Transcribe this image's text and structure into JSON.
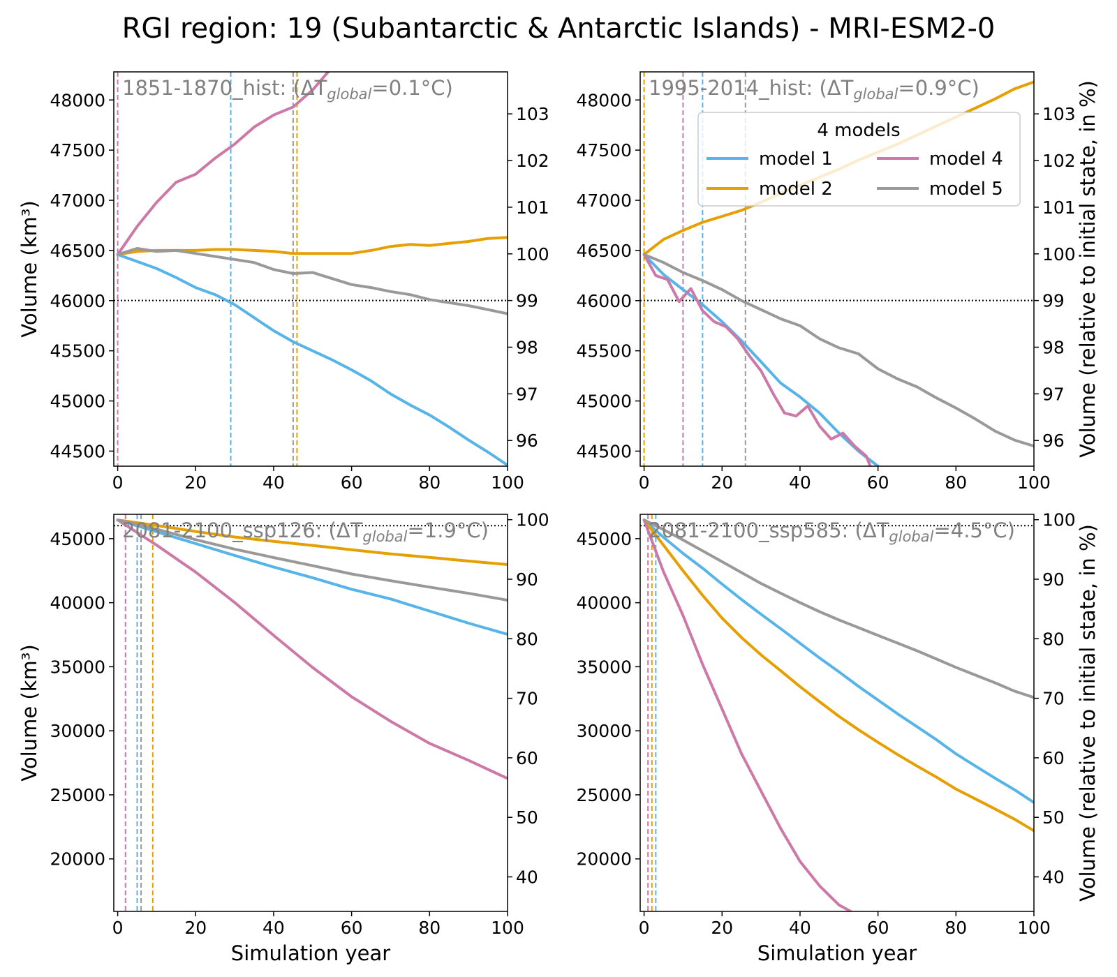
{
  "title": "RGI region: 19 (Subantarctic & Antarctic Islands) - MRI-ESM2-0",
  "colors": {
    "model 1": "#56b4e9",
    "model 2": "#e69f00",
    "model 4": "#cc79a7",
    "model 5": "#999999",
    "label": "#808080"
  },
  "legend": {
    "title": "4 models",
    "entries": [
      "model 1",
      "model 2",
      "model 4",
      "model 5"
    ]
  },
  "chart_data": [
    {
      "type": "line",
      "panel_label": {
        "prefix": "1851-1870_hist: (ΔT",
        "sub": "global",
        "suffix": "=0.1°C)"
      },
      "xlabel": "",
      "ylabel": "Volume (km³)",
      "ylabel_right": "",
      "xlim": [
        -1,
        100
      ],
      "ylim": [
        44350,
        48280
      ],
      "right_ylim": [
        95.45,
        103.9
      ],
      "xticks": [
        0,
        20,
        40,
        60,
        80,
        100
      ],
      "yticks": [
        44500,
        45000,
        45500,
        46000,
        46500,
        47000,
        47500,
        48000
      ],
      "right_yticks": [
        96,
        97,
        98,
        99,
        100,
        101,
        102,
        103
      ],
      "hline_pct": 99,
      "vlines": [
        {
          "series": "model 4",
          "x": 0
        },
        {
          "series": "model 1",
          "x": 29
        },
        {
          "series": "model 5",
          "x": 45
        },
        {
          "series": "model 2",
          "x": 46
        }
      ],
      "series": [
        {
          "name": "model 1",
          "x": [
            0,
            5,
            10,
            15,
            20,
            25,
            30,
            35,
            40,
            45,
            50,
            55,
            60,
            65,
            70,
            75,
            80,
            85,
            90,
            95,
            100
          ],
          "values": [
            46460,
            46390,
            46320,
            46230,
            46130,
            46060,
            45960,
            45830,
            45700,
            45590,
            45500,
            45410,
            45310,
            45200,
            45070,
            44960,
            44860,
            44740,
            44610,
            44490,
            44360
          ]
        },
        {
          "name": "model 2",
          "x": [
            0,
            5,
            10,
            15,
            20,
            25,
            30,
            35,
            40,
            45,
            50,
            55,
            60,
            65,
            70,
            75,
            80,
            85,
            90,
            95,
            100
          ],
          "values": [
            46460,
            46490,
            46500,
            46500,
            46500,
            46510,
            46510,
            46500,
            46490,
            46470,
            46470,
            46470,
            46470,
            46500,
            46540,
            46560,
            46550,
            46570,
            46590,
            46620,
            46630
          ]
        },
        {
          "name": "model 4",
          "x": [
            0,
            5,
            10,
            15,
            20,
            25,
            30,
            35,
            40,
            45,
            50,
            54
          ],
          "values": [
            46460,
            46740,
            46980,
            47180,
            47260,
            47420,
            47560,
            47730,
            47850,
            47930,
            48100,
            48280
          ]
        },
        {
          "name": "model 5",
          "x": [
            0,
            5,
            10,
            15,
            20,
            25,
            30,
            35,
            40,
            45,
            50,
            55,
            60,
            65,
            70,
            75,
            80,
            85,
            90,
            95,
            100
          ],
          "values": [
            46460,
            46520,
            46490,
            46500,
            46470,
            46440,
            46410,
            46380,
            46310,
            46270,
            46280,
            46220,
            46160,
            46130,
            46090,
            46060,
            46010,
            45980,
            45950,
            45910,
            45870
          ]
        }
      ]
    },
    {
      "type": "line",
      "panel_label": {
        "prefix": "1995-2014_hist: (ΔT",
        "sub": "global",
        "suffix": "=0.9°C)"
      },
      "xlabel": "",
      "ylabel": "",
      "ylabel_right": "Volume (relative to initial state, in %)",
      "xlim": [
        -1,
        100
      ],
      "ylim": [
        44350,
        48280
      ],
      "right_ylim": [
        95.45,
        103.9
      ],
      "xticks": [
        0,
        20,
        40,
        60,
        80,
        100
      ],
      "yticks": [
        44500,
        45000,
        45500,
        46000,
        46500,
        47000,
        47500,
        48000
      ],
      "right_yticks": [
        96,
        97,
        98,
        99,
        100,
        101,
        102,
        103
      ],
      "hline_pct": 99,
      "vlines": [
        {
          "series": "model 2",
          "x": 0
        },
        {
          "series": "model 4",
          "x": 10
        },
        {
          "series": "model 1",
          "x": 15
        },
        {
          "series": "model 5",
          "x": 26
        }
      ],
      "series": [
        {
          "name": "model 1",
          "x": [
            0,
            5,
            10,
            15,
            20,
            25,
            30,
            35,
            40,
            45,
            50,
            55,
            60
          ],
          "values": [
            46460,
            46260,
            46110,
            45960,
            45790,
            45600,
            45390,
            45180,
            45040,
            44880,
            44680,
            44500,
            44350
          ]
        },
        {
          "name": "model 2",
          "x": [
            0,
            5,
            10,
            15,
            20,
            25,
            30,
            35,
            40,
            45,
            50,
            55,
            60,
            65,
            70,
            75,
            80,
            85,
            90,
            95,
            100
          ],
          "values": [
            46460,
            46610,
            46700,
            46780,
            46840,
            46900,
            46980,
            47070,
            47150,
            47230,
            47310,
            47400,
            47480,
            47560,
            47650,
            47740,
            47830,
            47920,
            48010,
            48110,
            48180
          ]
        },
        {
          "name": "model 4",
          "x": [
            0,
            3,
            6,
            9,
            12,
            15,
            18,
            21,
            24,
            27,
            30,
            33,
            36,
            39,
            42,
            45,
            48,
            51,
            54,
            57,
            58
          ],
          "values": [
            46460,
            46250,
            46210,
            45990,
            46120,
            45900,
            45790,
            45740,
            45620,
            45450,
            45300,
            45080,
            44880,
            44850,
            44950,
            44750,
            44620,
            44680,
            44550,
            44450,
            44350
          ]
        },
        {
          "name": "model 5",
          "x": [
            0,
            5,
            10,
            15,
            20,
            25,
            30,
            35,
            40,
            45,
            50,
            55,
            60,
            65,
            70,
            75,
            80,
            85,
            90,
            95,
            100
          ],
          "values": [
            46460,
            46380,
            46280,
            46200,
            46110,
            46000,
            45910,
            45820,
            45750,
            45620,
            45530,
            45470,
            45320,
            45220,
            45140,
            45030,
            44930,
            44820,
            44700,
            44610,
            44550
          ]
        }
      ]
    },
    {
      "type": "line",
      "panel_label": {
        "prefix": "2081-2100_ssp126: (ΔT",
        "sub": "global",
        "suffix": "=1.9°C)"
      },
      "xlabel": "Simulation year",
      "ylabel": "Volume (km³)",
      "ylabel_right": "",
      "xlim": [
        -1,
        100
      ],
      "ylim": [
        15900,
        46900
      ],
      "right_ylim": [
        34.2,
        100.9
      ],
      "xticks": [
        0,
        20,
        40,
        60,
        80,
        100
      ],
      "yticks": [
        20000,
        25000,
        30000,
        35000,
        40000,
        45000
      ],
      "right_yticks": [
        40,
        50,
        60,
        70,
        80,
        90,
        100
      ],
      "hline_pct": 99,
      "vlines": [
        {
          "series": "model 4",
          "x": 2
        },
        {
          "series": "model 1",
          "x": 5
        },
        {
          "series": "model 5",
          "x": 6
        },
        {
          "series": "model 2",
          "x": 9
        }
      ],
      "series": [
        {
          "name": "model 1",
          "x": [
            0,
            10,
            20,
            30,
            40,
            50,
            60,
            70,
            80,
            90,
            100
          ],
          "values": [
            46460,
            45540,
            44610,
            43690,
            42780,
            41950,
            41050,
            40290,
            39350,
            38400,
            37530
          ]
        },
        {
          "name": "model 2",
          "x": [
            0,
            10,
            20,
            30,
            40,
            50,
            60,
            70,
            80,
            90,
            100
          ],
          "values": [
            46460,
            46030,
            45560,
            45130,
            44790,
            44470,
            44130,
            43810,
            43540,
            43250,
            42980
          ]
        },
        {
          "name": "model 4",
          "x": [
            0,
            10,
            20,
            30,
            40,
            50,
            60,
            70,
            80,
            90,
            100
          ],
          "values": [
            46460,
            44490,
            42390,
            40020,
            37450,
            34940,
            32660,
            30740,
            29020,
            27690,
            26280
          ]
        },
        {
          "name": "model 5",
          "x": [
            0,
            10,
            20,
            30,
            40,
            50,
            60,
            70,
            80,
            90,
            100
          ],
          "values": [
            46460,
            45740,
            44920,
            44180,
            43520,
            42890,
            42240,
            41720,
            41220,
            40730,
            40200
          ]
        }
      ]
    },
    {
      "type": "line",
      "panel_label": {
        "prefix": "2081-2100_ssp585: (ΔT",
        "sub": "global",
        "suffix": "=4.5°C)"
      },
      "xlabel": "Simulation year",
      "ylabel": "",
      "ylabel_right": "Volume (relative to initial state, in %)",
      "xlim": [
        -1,
        100
      ],
      "ylim": [
        15900,
        46900
      ],
      "right_ylim": [
        34.2,
        100.9
      ],
      "xticks": [
        0,
        20,
        40,
        60,
        80,
        100
      ],
      "yticks": [
        20000,
        25000,
        30000,
        35000,
        40000,
        45000
      ],
      "right_yticks": [
        40,
        50,
        60,
        70,
        80,
        90,
        100
      ],
      "hline_pct": 99,
      "vlines": [
        {
          "series": "model 4",
          "x": 1
        },
        {
          "series": "model 2",
          "x": 2
        },
        {
          "series": "model 1",
          "x": 3
        }
      ],
      "series": [
        {
          "name": "model 1",
          "x": [
            0,
            5,
            10,
            15,
            20,
            25,
            30,
            35,
            40,
            45,
            50,
            55,
            60,
            65,
            70,
            75,
            80,
            85,
            90,
            95,
            100
          ],
          "values": [
            46460,
            45100,
            43850,
            42700,
            41450,
            40250,
            39100,
            37980,
            36830,
            35690,
            34600,
            33470,
            32400,
            31330,
            30320,
            29300,
            28200,
            27250,
            26300,
            25400,
            24400
          ]
        },
        {
          "name": "model 2",
          "x": [
            0,
            5,
            10,
            15,
            20,
            25,
            30,
            35,
            40,
            45,
            50,
            55,
            60,
            65,
            70,
            75,
            80,
            85,
            90,
            95,
            100
          ],
          "values": [
            46460,
            44480,
            42490,
            40580,
            38800,
            37280,
            35930,
            34700,
            33450,
            32270,
            31130,
            30080,
            29100,
            28150,
            27250,
            26380,
            25450,
            24680,
            23900,
            23100,
            22200
          ]
        },
        {
          "name": "model 4",
          "x": [
            0,
            5,
            10,
            15,
            20,
            25,
            30,
            35,
            40,
            45,
            50,
            53
          ],
          "values": [
            46460,
            42400,
            39000,
            35200,
            31700,
            28200,
            25300,
            22400,
            19800,
            17900,
            16400,
            15900
          ]
        },
        {
          "name": "model 5",
          "x": [
            0,
            5,
            10,
            15,
            20,
            25,
            30,
            35,
            40,
            45,
            50,
            55,
            60,
            65,
            70,
            75,
            80,
            85,
            90,
            95,
            100
          ],
          "values": [
            46460,
            45700,
            44900,
            44050,
            43200,
            42350,
            41500,
            40750,
            40000,
            39300,
            38650,
            38050,
            37450,
            36850,
            36250,
            35600,
            34950,
            34350,
            33750,
            33100,
            32600
          ]
        }
      ]
    }
  ]
}
